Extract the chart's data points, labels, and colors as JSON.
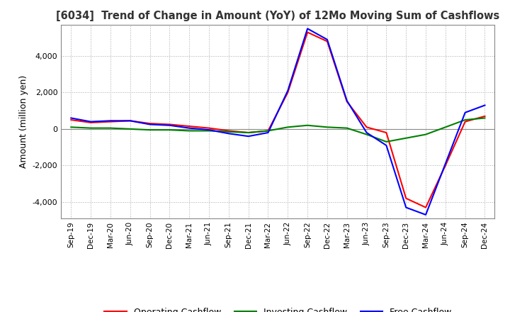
{
  "title": "[6034]  Trend of Change in Amount (YoY) of 12Mo Moving Sum of Cashflows",
  "ylabel": "Amount (million yen)",
  "background_color": "#ffffff",
  "grid_color": "#aaaaaa",
  "ylim": [
    -4900,
    5700
  ],
  "yticks": [
    -4000,
    -2000,
    0,
    2000,
    4000
  ],
  "x_labels": [
    "Sep-19",
    "Dec-19",
    "Mar-20",
    "Jun-20",
    "Sep-20",
    "Dec-20",
    "Mar-21",
    "Jun-21",
    "Sep-21",
    "Dec-21",
    "Mar-22",
    "Jun-22",
    "Sep-22",
    "Dec-22",
    "Mar-23",
    "Jun-23",
    "Sep-23",
    "Dec-23",
    "Mar-24",
    "Jun-24",
    "Sep-24",
    "Dec-24"
  ],
  "operating_cashflow": [
    500,
    350,
    400,
    450,
    300,
    250,
    150,
    50,
    -100,
    -200,
    -100,
    2000,
    5300,
    4800,
    1500,
    100,
    -200,
    -3800,
    -4300,
    -2000,
    400,
    700
  ],
  "investing_cashflow": [
    100,
    50,
    50,
    0,
    -50,
    -50,
    -100,
    -100,
    -150,
    -200,
    -100,
    100,
    200,
    100,
    50,
    -300,
    -700,
    -500,
    -300,
    100,
    500,
    600
  ],
  "free_cashflow": [
    600,
    400,
    450,
    450,
    250,
    200,
    50,
    -50,
    -250,
    -400,
    -200,
    2100,
    5500,
    4900,
    1550,
    -200,
    -900,
    -4300,
    -4700,
    -1900,
    900,
    1300
  ],
  "operating_color": "#ff0000",
  "investing_color": "#008000",
  "free_color": "#0000ff",
  "line_width": 1.5
}
